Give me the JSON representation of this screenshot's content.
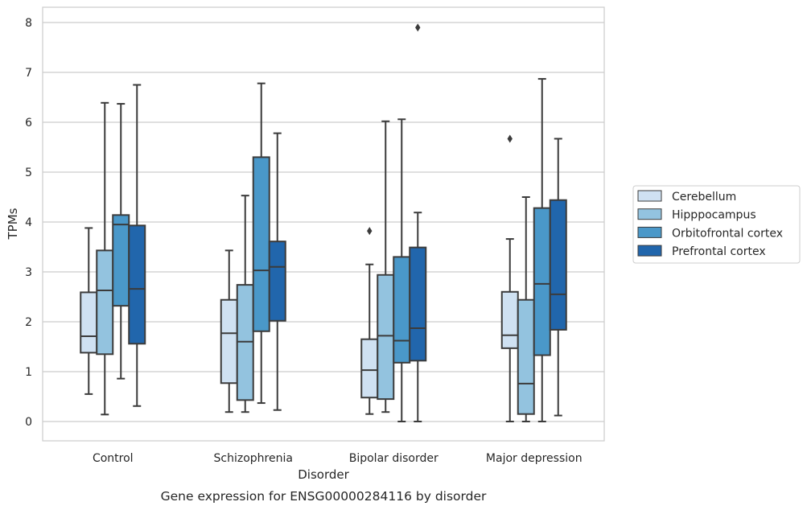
{
  "chart_data": {
    "type": "boxplot",
    "caption": "Gene expression for ENSG00000284116 by disorder",
    "xlabel": "Disorder",
    "ylabel": "TPMs",
    "ylim": [
      -0.4,
      8.3
    ],
    "yticks": [
      0,
      1,
      2,
      3,
      4,
      5,
      6,
      7,
      8
    ],
    "grid": "horizontal",
    "legend_position": "right",
    "categories": [
      "Control",
      "Schizophrenia",
      "Bipolar disorder",
      "Major depression"
    ],
    "series": [
      {
        "name": "Cerebellum",
        "color": "#cfe1f2",
        "boxes": [
          {
            "whislo": 0.55,
            "q1": 1.38,
            "med": 1.71,
            "q3": 2.59,
            "whishi": 3.88,
            "fliers": []
          },
          {
            "whislo": 0.19,
            "q1": 0.77,
            "med": 1.77,
            "q3": 2.44,
            "whishi": 3.43,
            "fliers": []
          },
          {
            "whislo": 0.15,
            "q1": 0.48,
            "med": 1.03,
            "q3": 1.65,
            "whishi": 3.15,
            "fliers": [
              3.82
            ]
          },
          {
            "whislo": 0.0,
            "q1": 1.47,
            "med": 1.73,
            "q3": 2.6,
            "whishi": 3.66,
            "fliers": [
              5.67
            ]
          }
        ]
      },
      {
        "name": "Hipppocampus",
        "color": "#93c3df",
        "boxes": [
          {
            "whislo": 0.14,
            "q1": 1.35,
            "med": 2.63,
            "q3": 3.43,
            "whishi": 6.39,
            "fliers": []
          },
          {
            "whislo": 0.19,
            "q1": 0.43,
            "med": 1.6,
            "q3": 2.74,
            "whishi": 4.53,
            "fliers": []
          },
          {
            "whislo": 0.19,
            "q1": 0.45,
            "med": 1.72,
            "q3": 2.94,
            "whishi": 6.02,
            "fliers": []
          },
          {
            "whislo": 0.0,
            "q1": 0.15,
            "med": 0.76,
            "q3": 2.44,
            "whishi": 4.5,
            "fliers": []
          }
        ]
      },
      {
        "name": "Orbitofrontal cortex",
        "color": "#4a98c9",
        "boxes": [
          {
            "whislo": 0.86,
            "q1": 2.32,
            "med": 3.95,
            "q3": 4.14,
            "whishi": 6.37,
            "fliers": []
          },
          {
            "whislo": 0.37,
            "q1": 1.81,
            "med": 3.03,
            "q3": 5.3,
            "whishi": 6.78,
            "fliers": []
          },
          {
            "whislo": 0.0,
            "q1": 1.18,
            "med": 1.62,
            "q3": 3.3,
            "whishi": 6.06,
            "fliers": []
          },
          {
            "whislo": 0.0,
            "q1": 1.33,
            "med": 2.76,
            "q3": 4.28,
            "whishi": 6.87,
            "fliers": []
          }
        ]
      },
      {
        "name": "Prefrontal cortex",
        "color": "#2166ac",
        "boxes": [
          {
            "whislo": 0.31,
            "q1": 1.56,
            "med": 2.66,
            "q3": 3.93,
            "whishi": 6.75,
            "fliers": []
          },
          {
            "whislo": 0.23,
            "q1": 2.02,
            "med": 3.1,
            "q3": 3.61,
            "whishi": 5.78,
            "fliers": []
          },
          {
            "whislo": 0.0,
            "q1": 1.22,
            "med": 1.87,
            "q3": 3.49,
            "whishi": 4.19,
            "fliers": [
              7.9
            ]
          },
          {
            "whislo": 0.12,
            "q1": 1.84,
            "med": 2.55,
            "q3": 4.44,
            "whishi": 5.67,
            "fliers": []
          }
        ]
      }
    ]
  }
}
